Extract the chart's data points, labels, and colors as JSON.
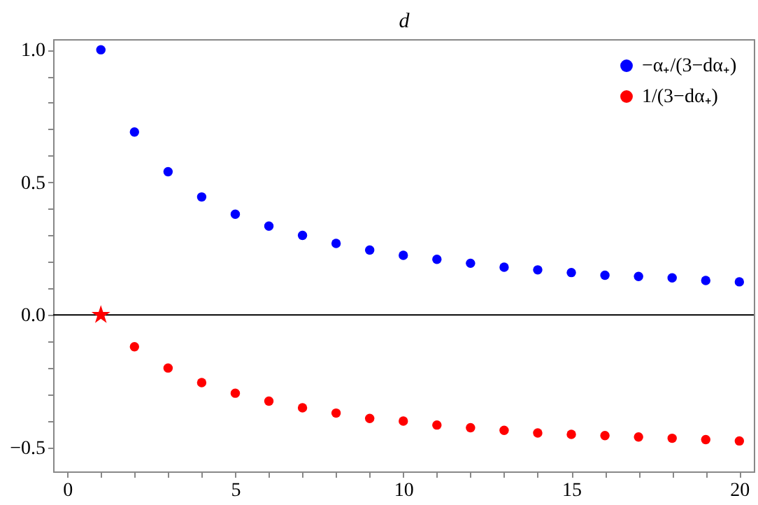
{
  "chart_data": {
    "type": "scatter",
    "xlabel": "d",
    "x": [
      1,
      2,
      3,
      4,
      5,
      6,
      7,
      8,
      9,
      10,
      11,
      12,
      13,
      14,
      15,
      16,
      17,
      18,
      19,
      20
    ],
    "series": [
      {
        "name": "−α₊/(3−dα₊)",
        "color": "#0000ff",
        "marker": "circle",
        "values": [
          1.0,
          0.69,
          0.54,
          0.445,
          0.38,
          0.335,
          0.3,
          0.27,
          0.245,
          0.225,
          0.21,
          0.195,
          0.18,
          0.17,
          0.16,
          0.15,
          0.145,
          0.14,
          0.13,
          0.125
        ]
      },
      {
        "name": "1/(3−dα₊)",
        "color": "#ff0000",
        "marker": "circle",
        "x": [
          2,
          3,
          4,
          5,
          6,
          7,
          8,
          9,
          10,
          11,
          12,
          13,
          14,
          15,
          16,
          17,
          18,
          19,
          20
        ],
        "values": [
          -0.12,
          -0.2,
          -0.255,
          -0.295,
          -0.325,
          -0.35,
          -0.37,
          -0.39,
          -0.4,
          -0.415,
          -0.425,
          -0.435,
          -0.445,
          -0.45,
          -0.455,
          -0.46,
          -0.465,
          -0.47,
          -0.475
        ]
      },
      {
        "color": "#ff0000",
        "marker": "star",
        "x": [
          1
        ],
        "values": [
          0
        ]
      }
    ],
    "xlim": [
      -0.42,
      20.43
    ],
    "ylim": [
      -0.59,
      1.04
    ],
    "xticks": [
      0,
      {
        "value": 1,
        "label": null
      },
      {
        "value": 2,
        "label": null
      },
      {
        "value": 3,
        "label": null
      },
      {
        "value": 4,
        "label": null
      },
      5,
      {
        "value": 6,
        "label": null
      },
      {
        "value": 7,
        "label": null
      },
      {
        "value": 8,
        "label": null
      },
      {
        "value": 9,
        "label": null
      },
      10,
      {
        "value": 11,
        "label": null
      },
      {
        "value": 12,
        "label": null
      },
      {
        "value": 13,
        "label": null
      },
      {
        "value": 14,
        "label": null
      },
      15,
      {
        "value": 16,
        "label": null
      },
      {
        "value": 17,
        "label": null
      },
      {
        "value": 18,
        "label": null
      },
      {
        "value": 19,
        "label": null
      },
      20
    ],
    "yticks": [
      {
        "value": -0.5,
        "label": "−0.5"
      },
      {
        "value": -0.4,
        "label": null
      },
      {
        "value": -0.3,
        "label": null
      },
      {
        "value": -0.2,
        "label": null
      },
      {
        "value": -0.1,
        "label": null
      },
      {
        "value": 0,
        "label": "0.0"
      },
      {
        "value": 0.1,
        "label": null
      },
      {
        "value": 0.2,
        "label": null
      },
      {
        "value": 0.3,
        "label": null
      },
      {
        "value": 0.4,
        "label": null
      },
      {
        "value": 0.5,
        "label": "0.5"
      },
      {
        "value": 0.6,
        "label": null
      },
      {
        "value": 0.7,
        "label": null
      },
      {
        "value": 0.8,
        "label": null
      },
      {
        "value": 0.9,
        "label": null
      },
      {
        "value": 1.0,
        "label": "1.0"
      }
    ],
    "ref_lines": [
      {
        "axis": "y",
        "value": 0,
        "color": "#000000"
      }
    ],
    "grid": false,
    "legend": "top right"
  }
}
